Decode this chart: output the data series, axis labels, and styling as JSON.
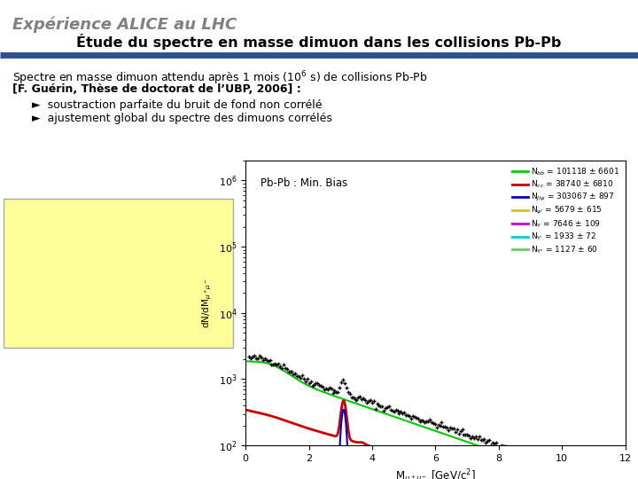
{
  "title1": "Expérience ALICE au LHC",
  "title2": "Étude du spectre en masse dimuon dans les collisions Pb-Pb",
  "bg_color": "#ffffff",
  "title1_color": "#808080",
  "title2_color": "#000000",
  "separator_color": "#2f4f8f",
  "bullet1": "soustraction parfaite du bruit de fond non corrélé",
  "bullet2": "ajustement global du spectre des dimuons corrélés",
  "box_color": "#ffff99",
  "plot_label": "Pb-Pb : Min. Bias",
  "legend_entries": [
    {
      "label": "N$_{bb}$ = 101118 ± 6601",
      "color": "#00cc00"
    },
    {
      "label": "N$_{cc}$ = 38740 ± 6810",
      "color": "#cc0000"
    },
    {
      "label": "N$_{J/\\psi}$ = 303067 ± 897",
      "color": "#0000cc"
    },
    {
      "label": "N$_{\\psi'}$ = 5679 ± 615",
      "color": "#cccc00"
    },
    {
      "label": "N$_{\\Upsilon}$ = 7646 ± 109",
      "color": "#cc00cc"
    },
    {
      "label": "N$_{\\Upsilon'}$ = 1933 ± 72",
      "color": "#00cccc"
    },
    {
      "label": "N$_{\\Upsilon''}$ = 1127 ± 60",
      "color": "#66cc66"
    }
  ],
  "xmin": 0,
  "xmax": 12,
  "ymin": 100,
  "ymax": 2000000
}
